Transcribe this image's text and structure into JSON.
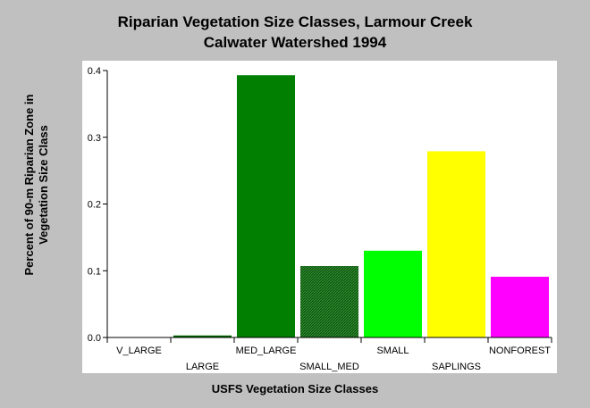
{
  "chart_data": {
    "type": "bar",
    "title": "Riparian Vegetation Size Classes, Larmour Creek",
    "subtitle": "Calwater Watershed 1994",
    "xlabel": "USFS Vegetation Size Classes",
    "ylabel": "Percent of 90-m Riparian Zone in Vegetation Size Class",
    "categories": [
      "V_LARGE",
      "LARGE",
      "MED_LARGE",
      "SMALL_MED",
      "SMALL",
      "SAPLINGS",
      "NONFOREST"
    ],
    "values": [
      0.0,
      0.003,
      0.393,
      0.107,
      0.13,
      0.279,
      0.091
    ],
    "colors": [
      "#006400",
      "#006400",
      "#007f00",
      "#1f7a1f",
      "#00ff00",
      "#ffff00",
      "#ff00ff"
    ],
    "ylim": [
      0,
      0.4
    ],
    "yticks": [
      "0.0",
      "0.1",
      "0.2",
      "0.3",
      "0.4"
    ],
    "yticks_values": [
      0,
      0.1,
      0.2,
      0.3,
      0.4
    ],
    "grid": false,
    "legend": "none"
  }
}
